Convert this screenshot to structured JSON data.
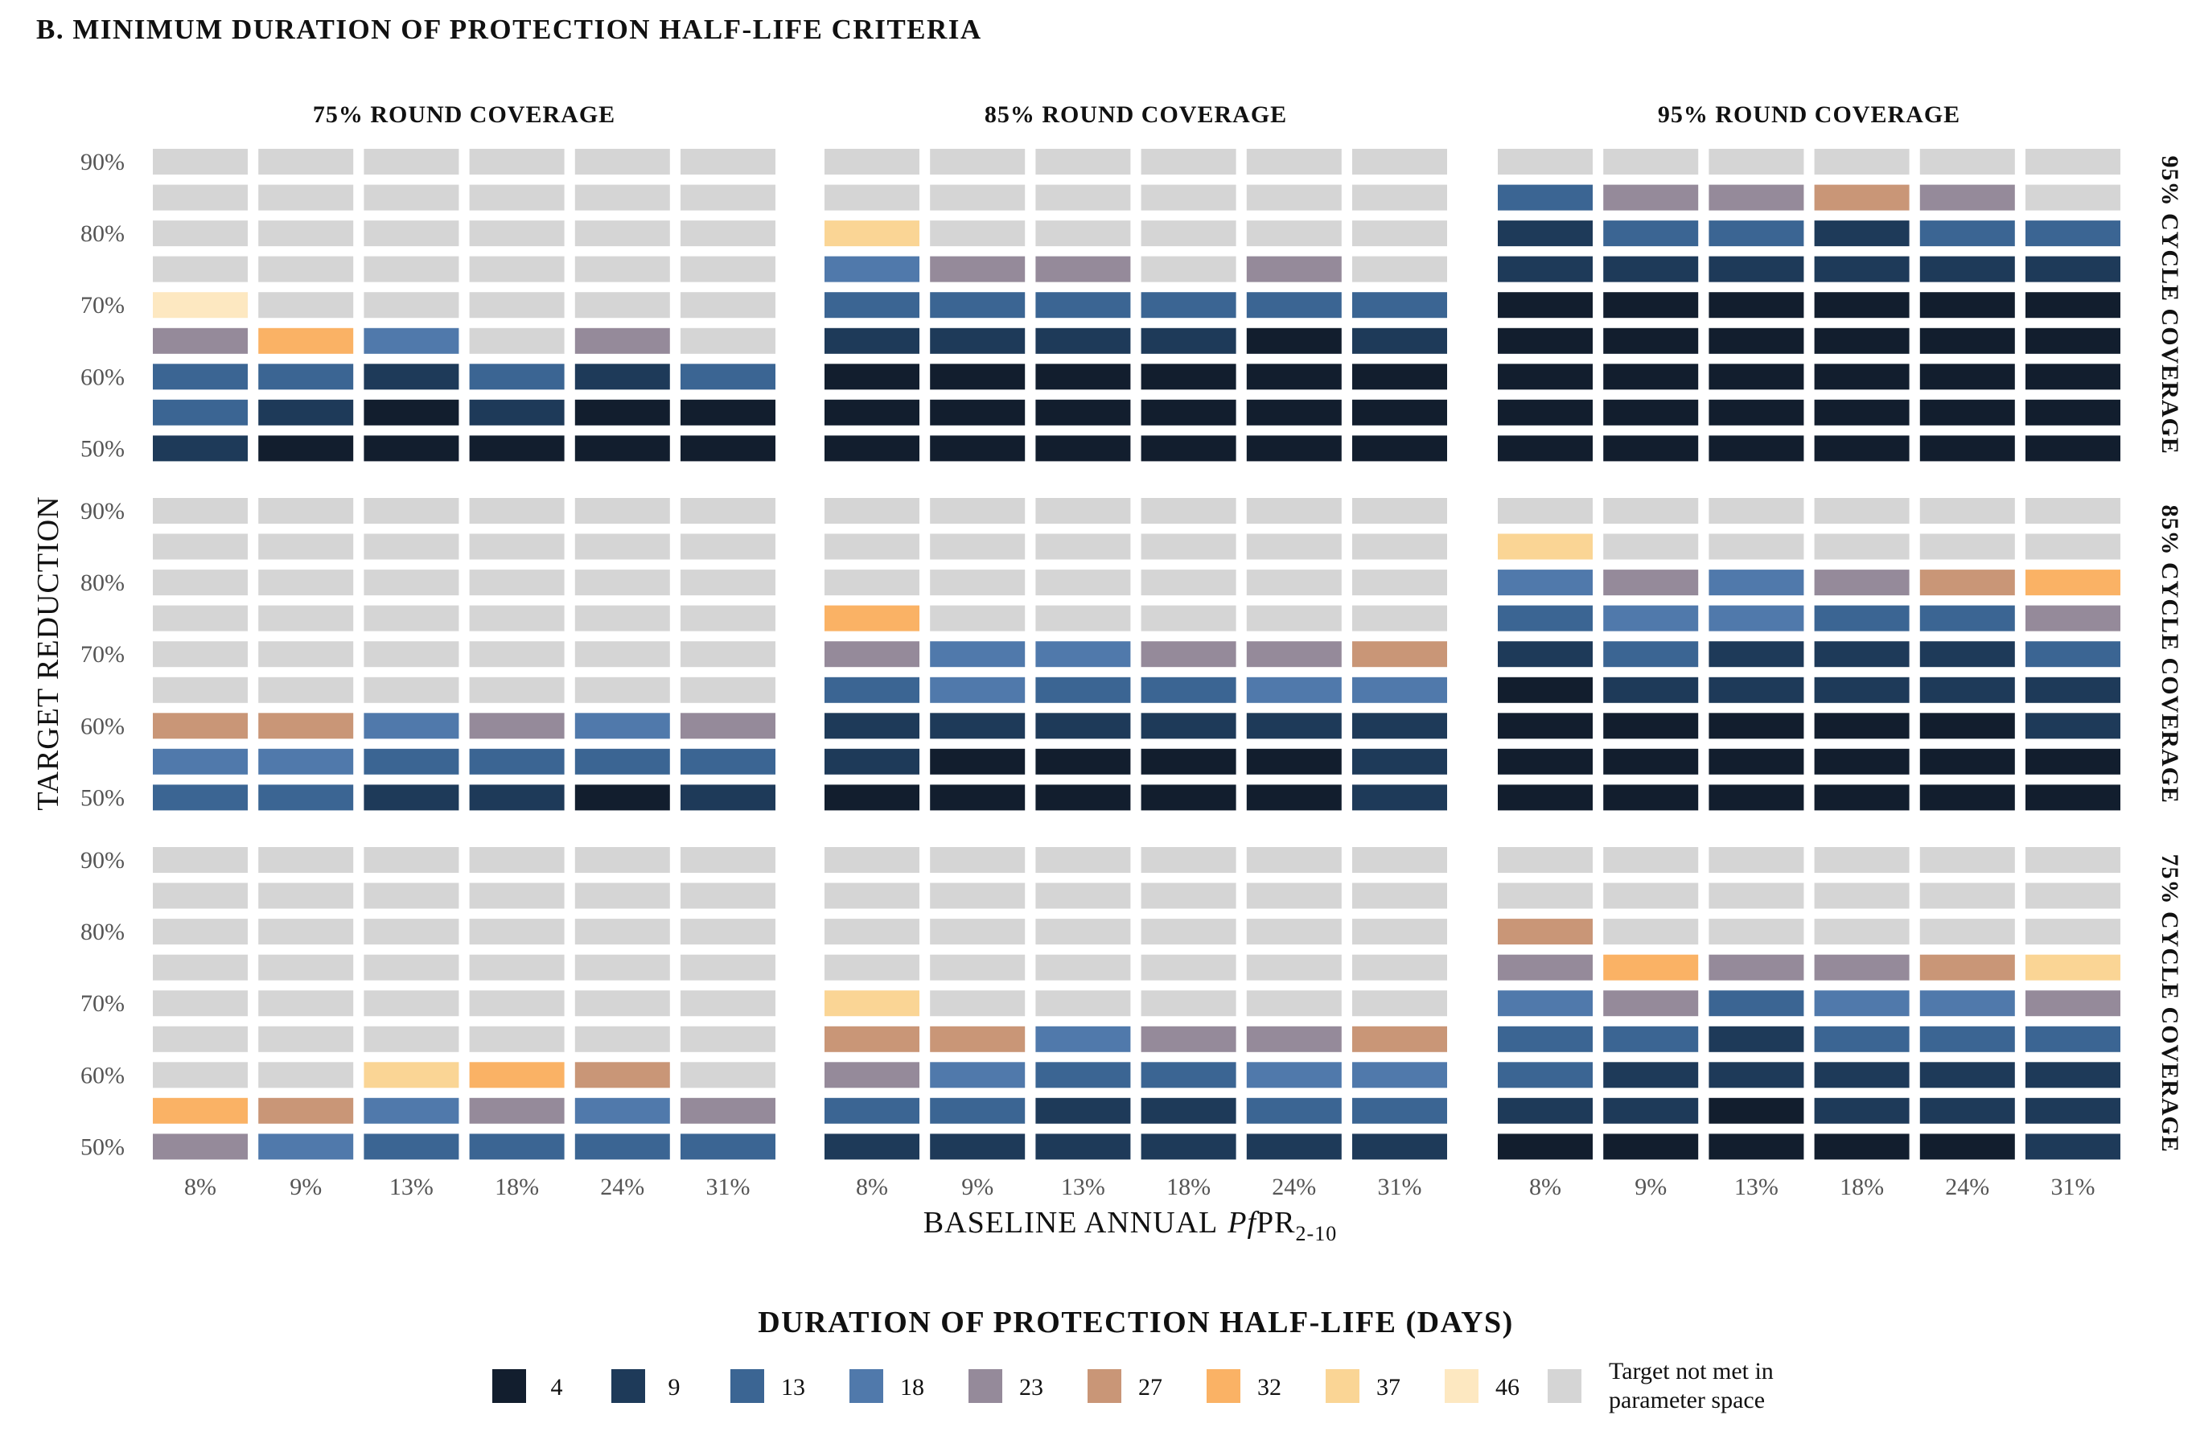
{
  "chart_data": {
    "type": "heatmap",
    "title": "B.  MINIMUM  DURATION  OF  PROTECTION  HALF-LIFE  CRITERIA",
    "xlabel": "BASELINE ANNUAL",
    "xlabel_italic": "Pf",
    "xlabel_main": "PR",
    "xlabel_sub": "2-10",
    "ylabel": "TARGET  REDUCTION",
    "x_categories": [
      "8%",
      "9%",
      "13%",
      "18%",
      "24%",
      "31%"
    ],
    "y_tick_labels": [
      "50%",
      "60%",
      "70%",
      "80%",
      "90%"
    ],
    "y_tick_values": [
      50,
      60,
      70,
      80,
      90
    ],
    "y_levels": [
      50,
      55,
      60,
      65,
      70,
      75,
      80,
      85,
      90
    ],
    "column_facets": [
      "75% ROUND COVERAGE",
      "85% ROUND COVERAGE",
      "95% ROUND COVERAGE"
    ],
    "row_facets": [
      "95% CYCLE COVERAGE",
      "85% CYCLE COVERAGE",
      "75% CYCLE COVERAGE"
    ],
    "legend": {
      "title": "DURATION  OF  PROTECTION  HALF-LIFE  (DAYS)",
      "items": [
        {
          "key": "4",
          "label": "4",
          "color": "#121e2e"
        },
        {
          "key": "9",
          "label": "9",
          "color": "#1e3a59"
        },
        {
          "key": "13",
          "label": "13",
          "color": "#3b6593"
        },
        {
          "key": "18",
          "label": "18",
          "color": "#5079ab"
        },
        {
          "key": "23",
          "label": "23",
          "color": "#958a9a"
        },
        {
          "key": "27",
          "label": "27",
          "color": "#c99677"
        },
        {
          "key": "32",
          "label": "32",
          "color": "#fab265"
        },
        {
          "key": "37",
          "label": "37",
          "color": "#fad595"
        },
        {
          "key": "46",
          "label": "46",
          "color": "#fde8c1"
        },
        {
          "key": "NA",
          "label_line1": "Target not met in",
          "label_line2": "parameter space",
          "color": "#d5d5d5"
        }
      ]
    },
    "note": "panels[row][col].values[yIndex][xIndex], yIndex 0 = 50% reduction ... 8 = 90% reduction; value = half-life days or NA",
    "panels": [
      [
        {
          "values": [
            [
              "9",
              "4",
              "4",
              "4",
              "4",
              "4"
            ],
            [
              "13",
              "9",
              "4",
              "9",
              "4",
              "4"
            ],
            [
              "13",
              "13",
              "9",
              "13",
              "9",
              "13"
            ],
            [
              "23",
              "32",
              "18",
              "NA",
              "23",
              "NA"
            ],
            [
              "46",
              "NA",
              "NA",
              "NA",
              "NA",
              "NA"
            ],
            [
              "NA",
              "NA",
              "NA",
              "NA",
              "NA",
              "NA"
            ],
            [
              "NA",
              "NA",
              "NA",
              "NA",
              "NA",
              "NA"
            ],
            [
              "NA",
              "NA",
              "NA",
              "NA",
              "NA",
              "NA"
            ],
            [
              "NA",
              "NA",
              "NA",
              "NA",
              "NA",
              "NA"
            ]
          ]
        },
        {
          "values": [
            [
              "4",
              "4",
              "4",
              "4",
              "4",
              "4"
            ],
            [
              "4",
              "4",
              "4",
              "4",
              "4",
              "4"
            ],
            [
              "4",
              "4",
              "4",
              "4",
              "4",
              "4"
            ],
            [
              "9",
              "9",
              "9",
              "9",
              "4",
              "9"
            ],
            [
              "13",
              "13",
              "13",
              "13",
              "13",
              "13"
            ],
            [
              "18",
              "23",
              "23",
              "NA",
              "23",
              "NA"
            ],
            [
              "37",
              "NA",
              "NA",
              "NA",
              "NA",
              "NA"
            ],
            [
              "NA",
              "NA",
              "NA",
              "NA",
              "NA",
              "NA"
            ],
            [
              "NA",
              "NA",
              "NA",
              "NA",
              "NA",
              "NA"
            ]
          ]
        },
        {
          "values": [
            [
              "4",
              "4",
              "4",
              "4",
              "4",
              "4"
            ],
            [
              "4",
              "4",
              "4",
              "4",
              "4",
              "4"
            ],
            [
              "4",
              "4",
              "4",
              "4",
              "4",
              "4"
            ],
            [
              "4",
              "4",
              "4",
              "4",
              "4",
              "4"
            ],
            [
              "4",
              "4",
              "4",
              "4",
              "4",
              "4"
            ],
            [
              "9",
              "9",
              "9",
              "9",
              "9",
              "9"
            ],
            [
              "9",
              "13",
              "13",
              "9",
              "13",
              "13"
            ],
            [
              "13",
              "23",
              "23",
              "27",
              "23",
              "NA"
            ],
            [
              "NA",
              "NA",
              "NA",
              "NA",
              "NA",
              "NA"
            ]
          ]
        }
      ],
      [
        {
          "values": [
            [
              "13",
              "13",
              "9",
              "9",
              "4",
              "9"
            ],
            [
              "18",
              "18",
              "13",
              "13",
              "13",
              "13"
            ],
            [
              "27",
              "27",
              "18",
              "23",
              "18",
              "23"
            ],
            [
              "NA",
              "NA",
              "NA",
              "NA",
              "NA",
              "NA"
            ],
            [
              "NA",
              "NA",
              "NA",
              "NA",
              "NA",
              "NA"
            ],
            [
              "NA",
              "NA",
              "NA",
              "NA",
              "NA",
              "NA"
            ],
            [
              "NA",
              "NA",
              "NA",
              "NA",
              "NA",
              "NA"
            ],
            [
              "NA",
              "NA",
              "NA",
              "NA",
              "NA",
              "NA"
            ],
            [
              "NA",
              "NA",
              "NA",
              "NA",
              "NA",
              "NA"
            ]
          ]
        },
        {
          "values": [
            [
              "4",
              "4",
              "4",
              "4",
              "4",
              "9"
            ],
            [
              "9",
              "4",
              "4",
              "4",
              "4",
              "9"
            ],
            [
              "9",
              "9",
              "9",
              "9",
              "9",
              "9"
            ],
            [
              "13",
              "18",
              "13",
              "13",
              "18",
              "18"
            ],
            [
              "23",
              "18",
              "18",
              "23",
              "23",
              "27"
            ],
            [
              "32",
              "NA",
              "NA",
              "NA",
              "NA",
              "NA"
            ],
            [
              "NA",
              "NA",
              "NA",
              "NA",
              "NA",
              "NA"
            ],
            [
              "NA",
              "NA",
              "NA",
              "NA",
              "NA",
              "NA"
            ],
            [
              "NA",
              "NA",
              "NA",
              "NA",
              "NA",
              "NA"
            ]
          ]
        },
        {
          "values": [
            [
              "4",
              "4",
              "4",
              "4",
              "4",
              "4"
            ],
            [
              "4",
              "4",
              "4",
              "4",
              "4",
              "4"
            ],
            [
              "4",
              "4",
              "4",
              "4",
              "4",
              "9"
            ],
            [
              "4",
              "9",
              "9",
              "9",
              "9",
              "9"
            ],
            [
              "9",
              "13",
              "9",
              "9",
              "9",
              "13"
            ],
            [
              "13",
              "18",
              "18",
              "13",
              "13",
              "23"
            ],
            [
              "18",
              "23",
              "18",
              "23",
              "27",
              "32"
            ],
            [
              "37",
              "NA",
              "NA",
              "NA",
              "NA",
              "NA"
            ],
            [
              "NA",
              "NA",
              "NA",
              "NA",
              "NA",
              "NA"
            ]
          ]
        }
      ],
      [
        {
          "values": [
            [
              "23",
              "18",
              "13",
              "13",
              "13",
              "13"
            ],
            [
              "32",
              "27",
              "18",
              "23",
              "18",
              "23"
            ],
            [
              "NA",
              "NA",
              "37",
              "32",
              "27",
              "NA"
            ],
            [
              "NA",
              "NA",
              "NA",
              "NA",
              "NA",
              "NA"
            ],
            [
              "NA",
              "NA",
              "NA",
              "NA",
              "NA",
              "NA"
            ],
            [
              "NA",
              "NA",
              "NA",
              "NA",
              "NA",
              "NA"
            ],
            [
              "NA",
              "NA",
              "NA",
              "NA",
              "NA",
              "NA"
            ],
            [
              "NA",
              "NA",
              "NA",
              "NA",
              "NA",
              "NA"
            ],
            [
              "NA",
              "NA",
              "NA",
              "NA",
              "NA",
              "NA"
            ]
          ]
        },
        {
          "values": [
            [
              "9",
              "9",
              "9",
              "9",
              "9",
              "9"
            ],
            [
              "13",
              "13",
              "9",
              "9",
              "13",
              "13"
            ],
            [
              "23",
              "18",
              "13",
              "13",
              "18",
              "18"
            ],
            [
              "27",
              "27",
              "18",
              "23",
              "23",
              "27"
            ],
            [
              "37",
              "NA",
              "NA",
              "NA",
              "NA",
              "NA"
            ],
            [
              "NA",
              "NA",
              "NA",
              "NA",
              "NA",
              "NA"
            ],
            [
              "NA",
              "NA",
              "NA",
              "NA",
              "NA",
              "NA"
            ],
            [
              "NA",
              "NA",
              "NA",
              "NA",
              "NA",
              "NA"
            ],
            [
              "NA",
              "NA",
              "NA",
              "NA",
              "NA",
              "NA"
            ]
          ]
        },
        {
          "values": [
            [
              "4",
              "4",
              "4",
              "4",
              "4",
              "9"
            ],
            [
              "9",
              "9",
              "4",
              "9",
              "9",
              "9"
            ],
            [
              "13",
              "9",
              "9",
              "9",
              "9",
              "9"
            ],
            [
              "13",
              "13",
              "9",
              "13",
              "13",
              "13"
            ],
            [
              "18",
              "23",
              "13",
              "18",
              "18",
              "23"
            ],
            [
              "23",
              "32",
              "23",
              "23",
              "27",
              "37"
            ],
            [
              "27",
              "NA",
              "NA",
              "NA",
              "NA",
              "NA"
            ],
            [
              "NA",
              "NA",
              "NA",
              "NA",
              "NA",
              "NA"
            ],
            [
              "NA",
              "NA",
              "NA",
              "NA",
              "NA",
              "NA"
            ]
          ]
        }
      ]
    ]
  }
}
